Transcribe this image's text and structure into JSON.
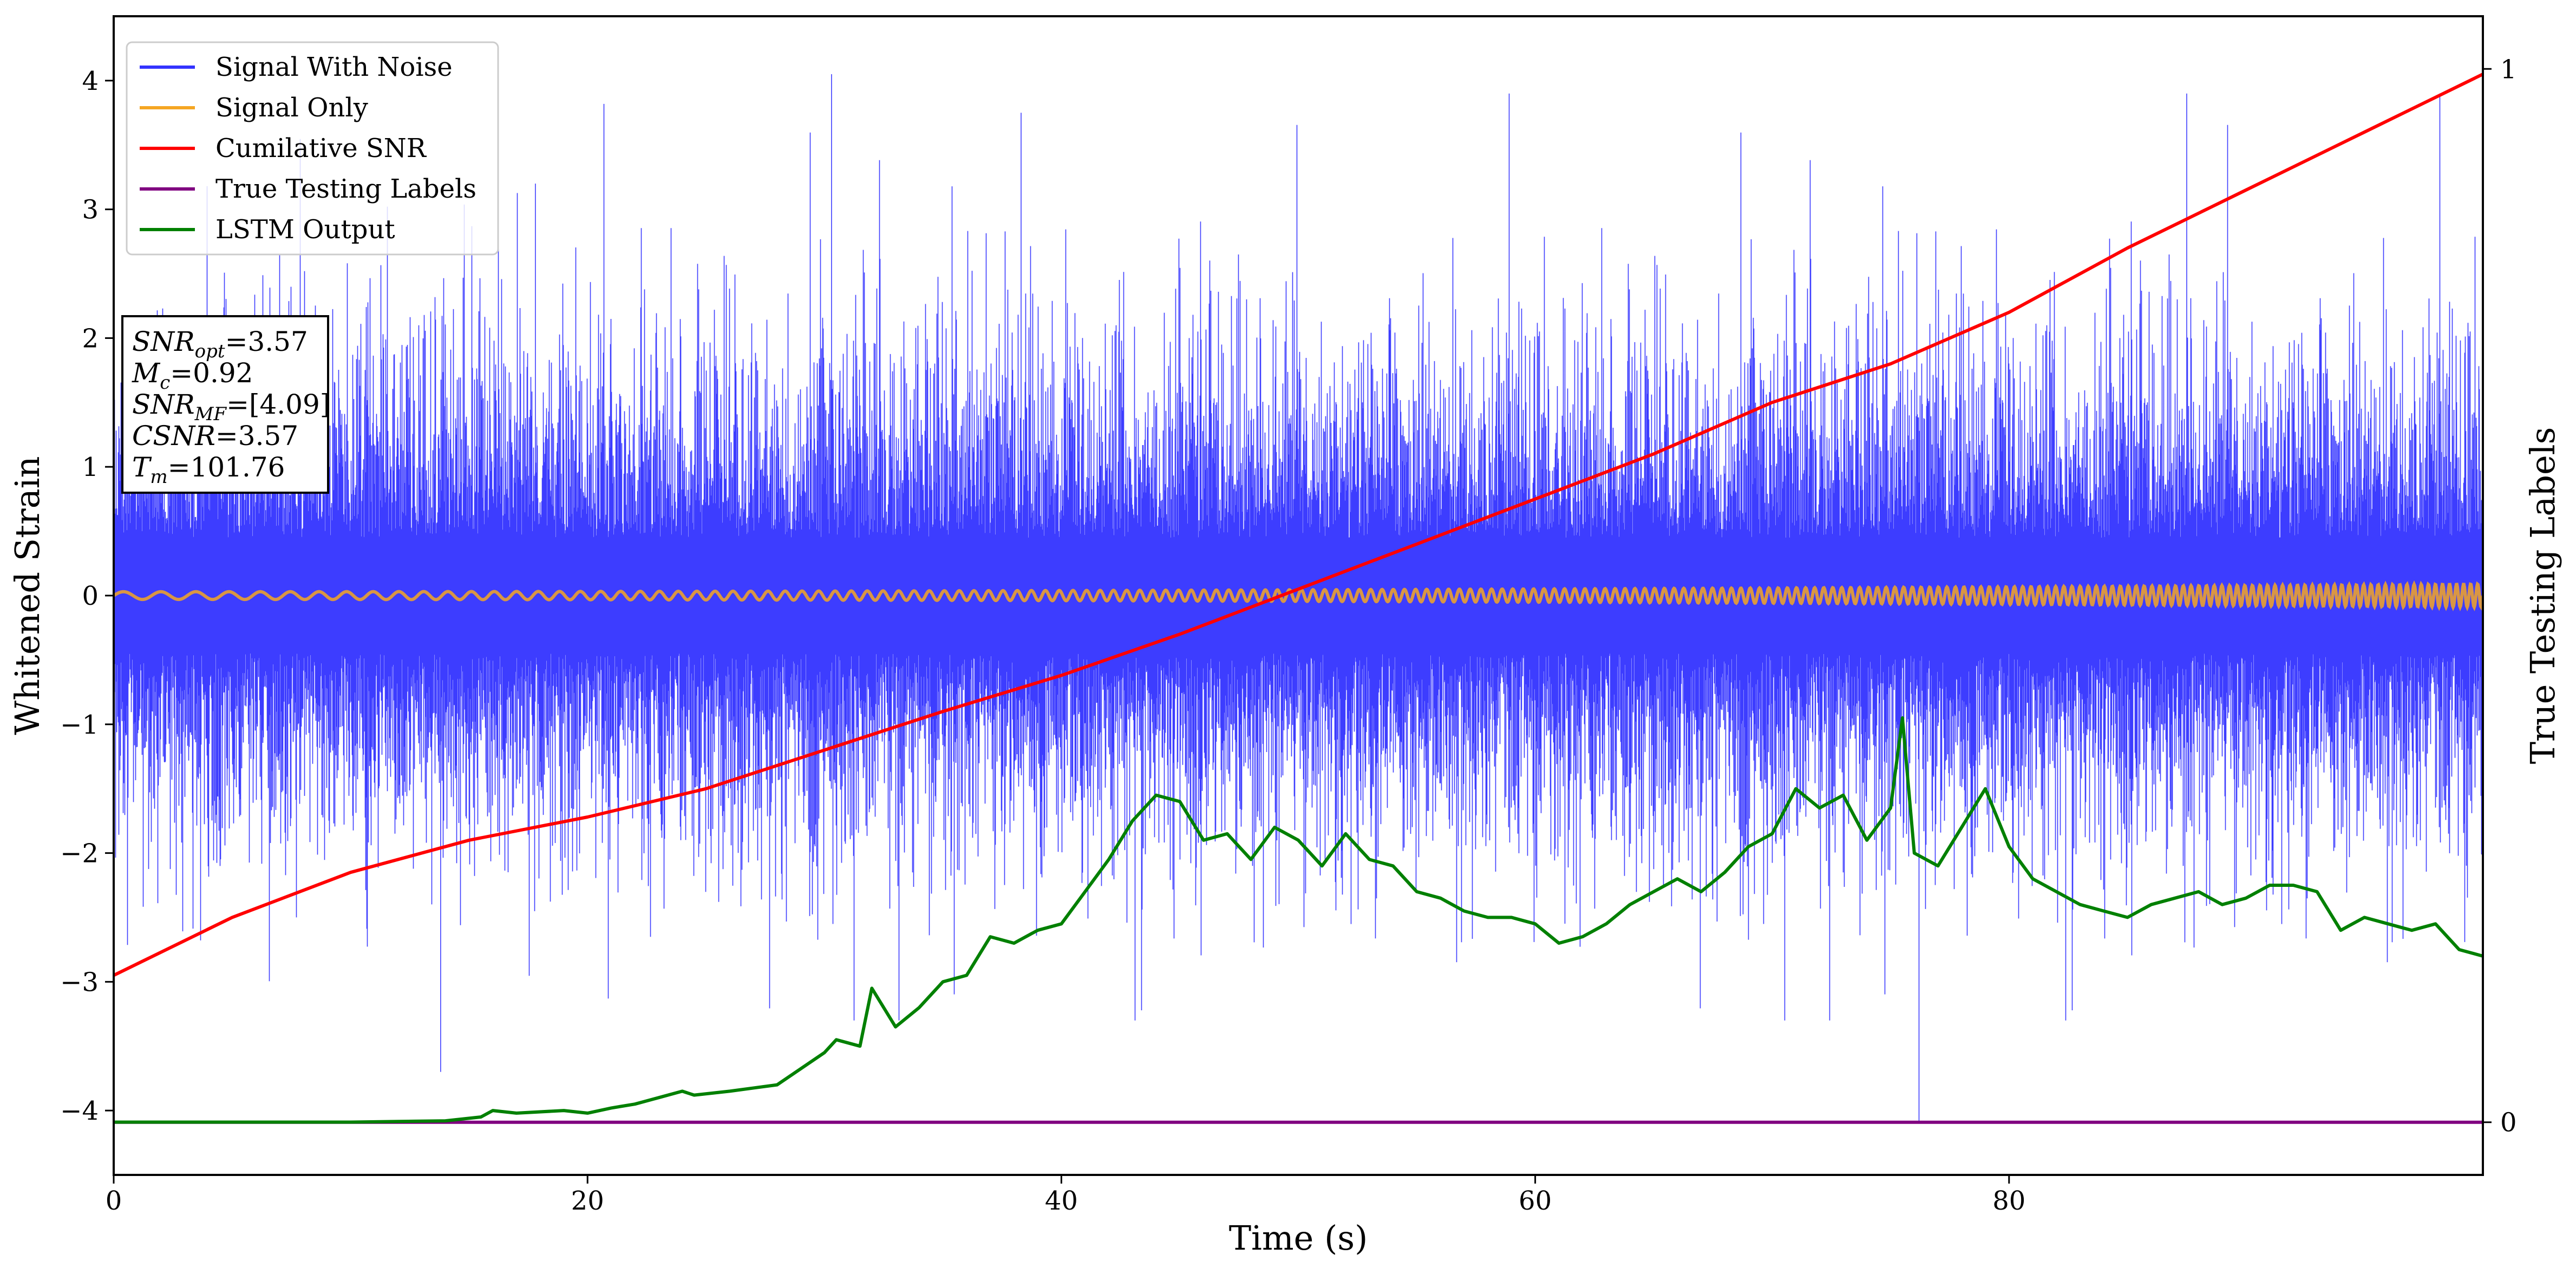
{
  "chart_data": {
    "type": "line",
    "xlabel": "Time (s)",
    "ylabel": "Whitened Strain",
    "ylabel_right": "True Testing Labels",
    "xlim": [
      0,
      100
    ],
    "ylim": [
      -4.5,
      4.5
    ],
    "ylim_right": [
      -0.05,
      1.05
    ],
    "x_ticks": [
      0,
      20,
      40,
      60,
      80
    ],
    "y_ticks": [
      -4,
      -3,
      -2,
      -1,
      0,
      1,
      2,
      3,
      4
    ],
    "y_right_ticks": [
      0,
      1
    ],
    "grid": false,
    "legend_position": "upper-left",
    "series": [
      {
        "name": "Signal With Noise",
        "color": "#3333ff",
        "style": "dense-noise",
        "amplitude_envelope": 1.4,
        "peak_max": 4.05,
        "peak_min": -4.1
      },
      {
        "name": "Signal Only",
        "color": "#f5a623",
        "style": "chirp",
        "amplitude_start": 0.03,
        "amplitude_end": 0.09
      },
      {
        "name": "Cumilative SNR",
        "color": "#ff0000",
        "axis": "left",
        "x": [
          0,
          5,
          10,
          15,
          20,
          25,
          30,
          35,
          40,
          45,
          50,
          55,
          60,
          65,
          70,
          75,
          80,
          85,
          90,
          95,
          100
        ],
        "y": [
          -2.95,
          -2.5,
          -2.15,
          -1.9,
          -1.72,
          -1.5,
          -1.2,
          -0.9,
          -0.62,
          -0.3,
          0.05,
          0.4,
          0.75,
          1.1,
          1.5,
          1.8,
          2.2,
          2.7,
          3.15,
          3.6,
          4.05
        ]
      },
      {
        "name": "True Testing Labels",
        "color": "#800080",
        "axis": "right",
        "x": [
          0,
          100
        ],
        "y": [
          0,
          0
        ]
      },
      {
        "name": "LSTM Output",
        "color": "#008000",
        "axis": "left",
        "x": [
          0,
          10,
          14,
          15.5,
          16,
          17,
          19,
          20,
          21,
          22,
          23,
          24,
          24.5,
          26,
          28,
          30,
          30.5,
          31.5,
          32,
          33,
          34,
          35,
          36,
          37,
          38,
          39,
          40,
          41,
          42,
          43,
          44,
          45,
          46,
          47,
          48,
          49,
          50,
          51,
          52,
          53,
          54,
          55,
          56,
          57,
          58,
          59,
          60,
          61,
          62,
          63,
          64,
          65,
          66,
          67,
          68,
          69,
          70,
          71,
          72,
          73,
          74,
          75,
          75.5,
          76,
          77,
          78,
          79,
          80,
          81,
          82,
          83,
          84,
          85,
          86,
          87,
          88,
          89,
          90,
          91,
          92,
          93,
          94,
          95,
          96,
          97,
          98,
          99,
          100
        ],
        "y": [
          -4.09,
          -4.09,
          -4.08,
          -4.05,
          -4.0,
          -4.02,
          -4.0,
          -4.02,
          -3.98,
          -3.95,
          -3.9,
          -3.85,
          -3.88,
          -3.85,
          -3.8,
          -3.55,
          -3.45,
          -3.5,
          -3.05,
          -3.35,
          -3.2,
          -3.0,
          -2.95,
          -2.65,
          -2.7,
          -2.6,
          -2.55,
          -2.3,
          -2.05,
          -1.75,
          -1.55,
          -1.6,
          -1.9,
          -1.85,
          -2.05,
          -1.8,
          -1.9,
          -2.1,
          -1.85,
          -2.05,
          -2.1,
          -2.3,
          -2.35,
          -2.45,
          -2.5,
          -2.5,
          -2.55,
          -2.7,
          -2.65,
          -2.55,
          -2.4,
          -2.3,
          -2.2,
          -2.3,
          -2.15,
          -1.95,
          -1.85,
          -1.5,
          -1.65,
          -1.55,
          -1.9,
          -1.65,
          -0.95,
          -2.0,
          -2.1,
          -1.8,
          -1.5,
          -1.95,
          -2.2,
          -2.3,
          -2.4,
          -2.45,
          -2.5,
          -2.4,
          -2.35,
          -2.3,
          -2.4,
          -2.35,
          -2.25,
          -2.25,
          -2.3,
          -2.6,
          -2.5,
          -2.55,
          -2.6,
          -2.55,
          -2.75,
          -2.8
        ]
      }
    ],
    "annotation_box": {
      "lines": [
        {
          "main": "SNR",
          "sub": "opt",
          "rest": "=3.57"
        },
        {
          "main": "M",
          "sub": "c",
          "rest": "=0.92"
        },
        {
          "main": "SNR",
          "sub": "MF",
          "rest": "=[4.09]"
        },
        {
          "main": "CSNR",
          "sub": "",
          "rest": "=3.57"
        },
        {
          "main": "T",
          "sub": "m",
          "rest": "=101.76"
        }
      ]
    }
  }
}
